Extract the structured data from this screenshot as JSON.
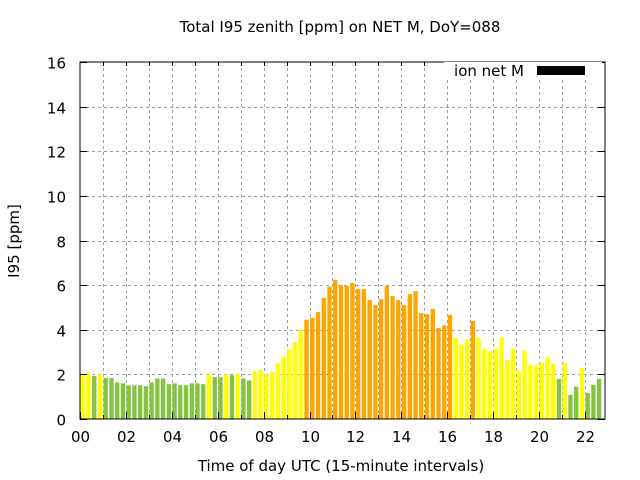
{
  "chart_data": {
    "type": "bar",
    "title": "Total I95 zenith [ppm] on NET M, DoY=088",
    "xlabel": "Time of day UTC (15-minute intervals)",
    "ylabel": "I95 [ppm]",
    "xlim": [
      0,
      22.875
    ],
    "ylim": [
      0,
      16
    ],
    "grid": true,
    "legend": {
      "placement": "top-right",
      "entries": [
        {
          "label": "ion net M",
          "color": "#000000"
        }
      ]
    },
    "x_tick_labels": [
      "00",
      "02",
      "04",
      "06",
      "08",
      "10",
      "12",
      "14",
      "16",
      "18",
      "20",
      "22"
    ],
    "x_ticks_hours": [
      0,
      2,
      4,
      6,
      8,
      10,
      12,
      14,
      16,
      18,
      20,
      22
    ],
    "y_tick_labels": [
      "0",
      "2",
      "4",
      "6",
      "8",
      "10",
      "12",
      "14",
      "16"
    ],
    "y_ticks": [
      0,
      2,
      4,
      6,
      8,
      10,
      12,
      14,
      16
    ],
    "bin_hours": 0.25,
    "color_thresholds": {
      "low_below": 2.0,
      "high_above": 4.0
    },
    "colors": {
      "low": "#85c440",
      "mid": "#ffff00",
      "high": "#ffa500"
    },
    "series": [
      {
        "name": "ion net M",
        "values": [
          2.0,
          2.04,
          1.93,
          2.0,
          1.84,
          1.84,
          1.64,
          1.6,
          1.51,
          1.51,
          1.51,
          1.47,
          1.64,
          1.82,
          1.82,
          1.56,
          1.6,
          1.51,
          1.51,
          1.6,
          1.6,
          1.56,
          2.0,
          1.88,
          1.88,
          2.0,
          1.96,
          2.04,
          1.82,
          1.73,
          2.14,
          2.2,
          2.0,
          2.1,
          2.5,
          2.8,
          3.13,
          3.45,
          4.0,
          4.45,
          4.54,
          4.8,
          5.43,
          5.93,
          6.24,
          6.0,
          5.96,
          6.1,
          5.82,
          5.82,
          5.33,
          5.1,
          5.37,
          5.96,
          5.51,
          5.33,
          5.1,
          5.6,
          5.73,
          4.75,
          4.7,
          4.93,
          4.08,
          4.2,
          4.66,
          3.64,
          3.33,
          3.55,
          4.39,
          3.64,
          3.13,
          3.04,
          3.13,
          3.64,
          2.64,
          3.15,
          2.16,
          3.06,
          2.43,
          2.39,
          2.52,
          2.75,
          2.48,
          1.8,
          2.52,
          1.08,
          1.44,
          2.3,
          1.17,
          1.53,
          1.8
        ]
      }
    ]
  }
}
